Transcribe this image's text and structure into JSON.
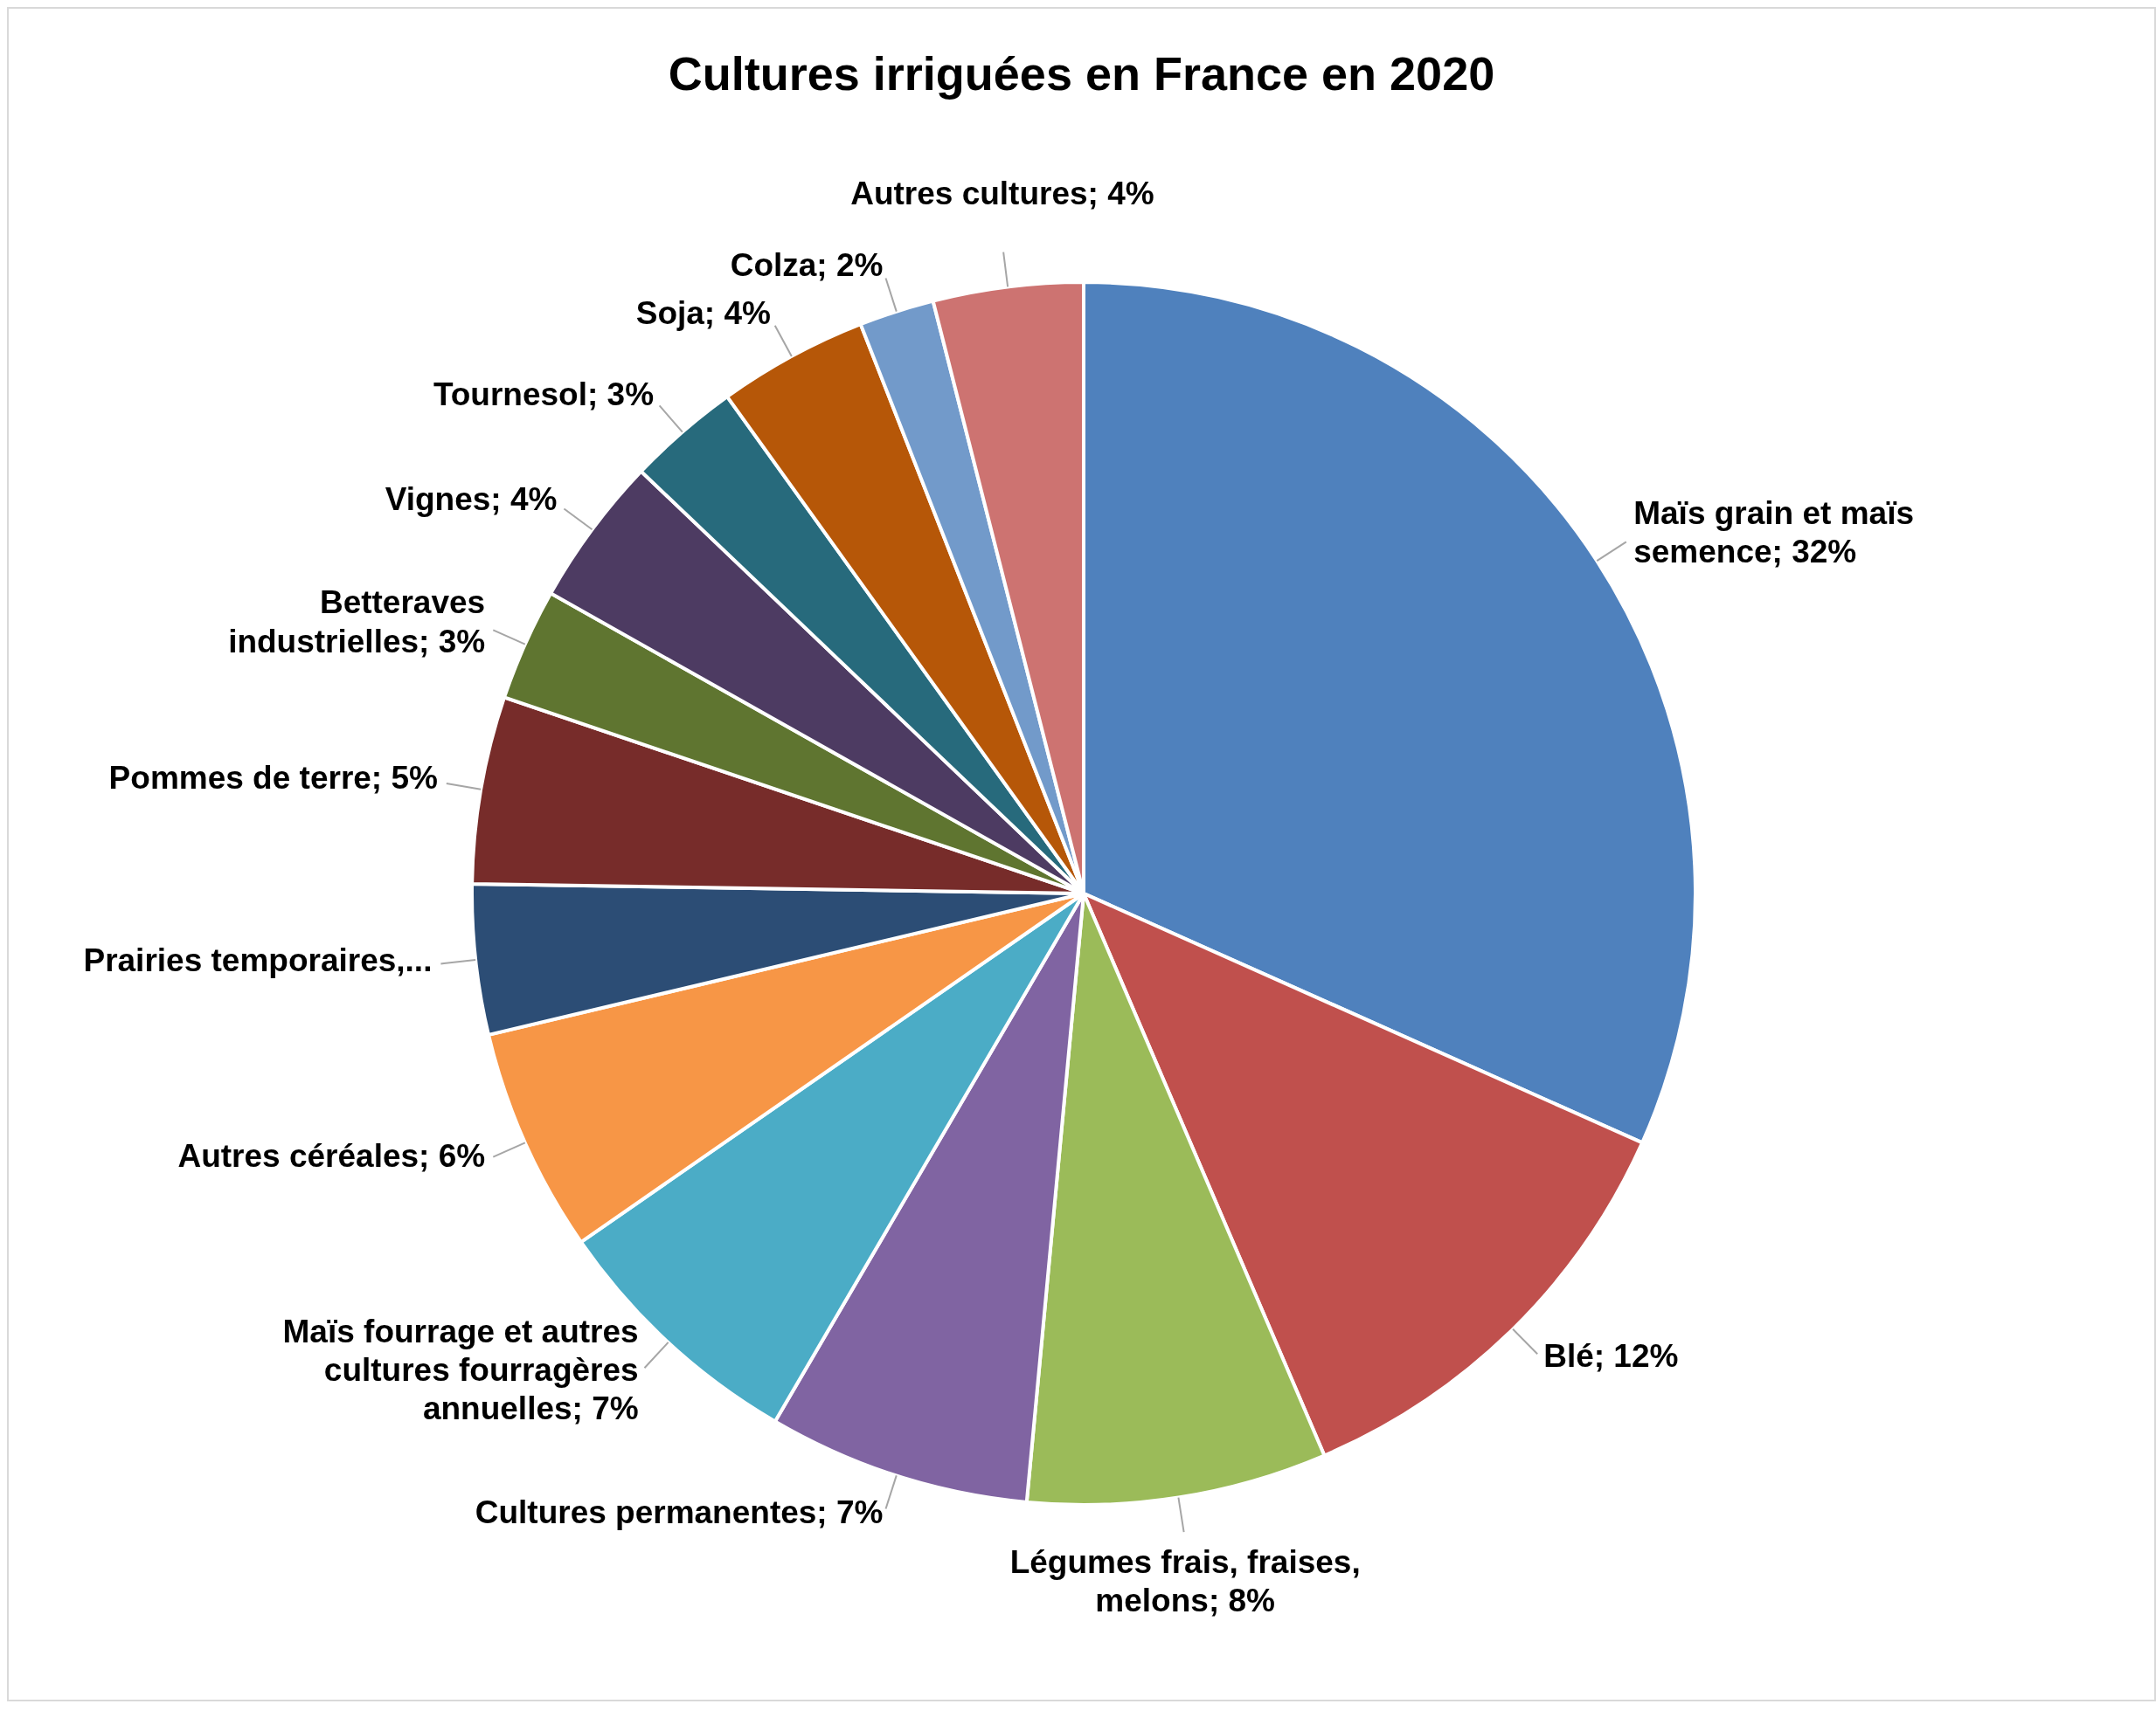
{
  "chart_data": {
    "type": "pie",
    "title": "Cultures irriguées en France en 2020",
    "categories": [
      "Maïs grain et maïs semence",
      "Blé",
      "Légumes frais, fraises, melons",
      "Cultures permanentes",
      "Maïs fourrage et autres cultures fourragères annuelles",
      "Autres céréales",
      "Prairies temporaires,...",
      "Pommes de terre",
      "Betteraves industrielles",
      "Vignes",
      "Tournesol",
      "Soja",
      "Colza",
      "Autres cultures"
    ],
    "values": [
      32,
      12,
      8,
      7,
      7,
      6,
      4,
      5,
      3,
      4,
      3,
      4,
      2,
      4
    ],
    "value_labels": [
      "32%",
      "12%",
      "8%",
      "7%",
      "7%",
      "6%",
      null,
      "5%",
      "3%",
      "4%",
      "3%",
      "4%",
      "2%",
      "4%"
    ],
    "colors": [
      "#4f81bd",
      "#c0504d",
      "#9bbb59",
      "#8064a2",
      "#4bacc6",
      "#f79646",
      "#2c4d75",
      "#772c2a",
      "#5f7530",
      "#4d3b62",
      "#276a7c",
      "#b65708",
      "#729aca",
      "#cd7371"
    ]
  }
}
